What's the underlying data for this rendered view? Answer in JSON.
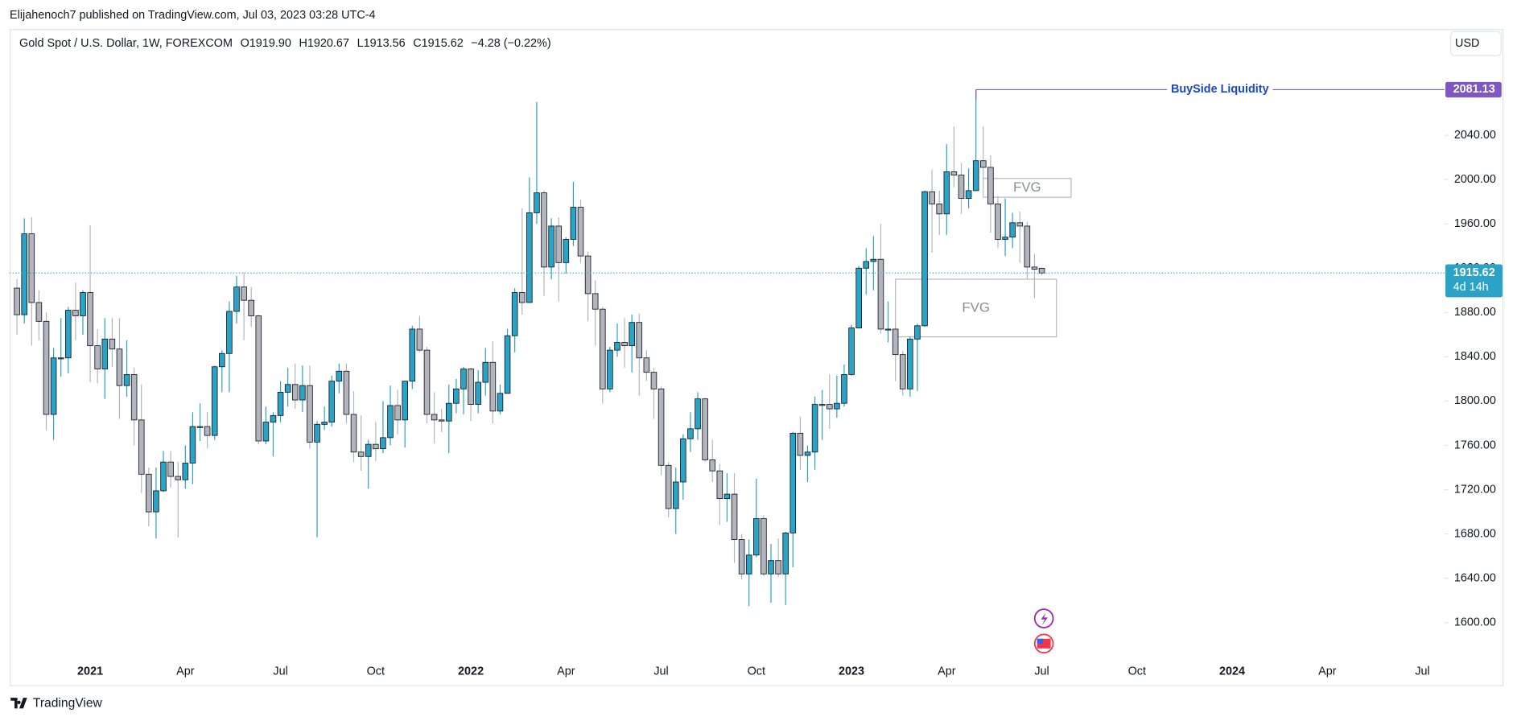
{
  "header": {
    "published": "Elijahenoch7 published on TradingView.com, Jul 03, 2023 03:28 UTC-4",
    "footer": "TradingView",
    "currency_button": "USD"
  },
  "legend": {
    "symbol": "Gold Spot / U.S. Dollar, 1W, FOREXCOM",
    "open": "O1919.90",
    "high": "H1920.67",
    "low": "L1913.56",
    "close": "C1915.62",
    "change": "−4.28 (−0.22%)"
  },
  "chart_data": {
    "type": "candlestick",
    "up_color": "#2ba3c6",
    "down_color": "#b2b5be",
    "outline_color": "#131722",
    "open": [
      1902,
      1878,
      1951,
      1889,
      1872,
      1788,
      1839,
      1839,
      1882,
      1877,
      1898,
      1850,
      1829,
      1856,
      1847,
      1814,
      1824,
      1783,
      1734,
      1700,
      1719,
      1745,
      1732,
      1729,
      1744,
      1777,
      1777,
      1769,
      1831,
      1843,
      1881,
      1903,
      1891,
      1877,
      1764,
      1781,
      1787,
      1808,
      1815,
      1801,
      1814,
      1763,
      1779,
      1781,
      1818,
      1827,
      1788,
      1754,
      1750,
      1761,
      1757,
      1767,
      1796,
      1783,
      1818,
      1865,
      1846,
      1788,
      1783,
      1782,
      1798,
      1811,
      1829,
      1797,
      1817,
      1835,
      1791,
      1807,
      1859,
      1898,
      1889,
      1970,
      1988,
      1921,
      1958,
      1925,
      1946,
      1975,
      1931,
      1897,
      1883,
      1811,
      1846,
      1853,
      1850,
      1871,
      1839,
      1826,
      1811,
      1742,
      1703,
      1727,
      1766,
      1775,
      1802,
      1747,
      1737,
      1712,
      1716,
      1675,
      1644,
      1661,
      1694,
      1644,
      1656,
      1644,
      1681,
      1771,
      1751,
      1754,
      1797,
      1797,
      1793,
      1798,
      1824,
      1866,
      1920,
      1926,
      1928,
      1865,
      1865,
      1842,
      1811,
      1856,
      1868,
      1989,
      1978,
      1969,
      2007,
      2004,
      1983,
      1990,
      2017,
      2011,
      1978,
      1946,
      1948,
      1961,
      1958,
      1921,
      1919.9
    ],
    "high": [
      1910,
      1965,
      1966,
      1900,
      1880,
      1848,
      1875,
      1885,
      1907,
      1900,
      1959,
      1865,
      1875,
      1875,
      1875,
      1855,
      1830,
      1815,
      1740,
      1740,
      1755,
      1755,
      1745,
      1760,
      1790,
      1798,
      1790,
      1832,
      1846,
      1890,
      1913,
      1916,
      1903,
      1878,
      1795,
      1790,
      1818,
      1830,
      1834,
      1832,
      1832,
      1782,
      1795,
      1823,
      1834,
      1834,
      1809,
      1787,
      1765,
      1781,
      1800,
      1814,
      1810,
      1818,
      1868,
      1877,
      1849,
      1808,
      1793,
      1815,
      1820,
      1831,
      1830,
      1828,
      1848,
      1854,
      1815,
      1865,
      1902,
      1974,
      2002,
      2070,
      1990,
      1965,
      1966,
      1948,
      1998,
      1982,
      1935,
      1909,
      1885,
      1849,
      1870,
      1875,
      1878,
      1879,
      1846,
      1830,
      1813,
      1745,
      1740,
      1770,
      1790,
      1808,
      1803,
      1765,
      1743,
      1735,
      1735,
      1680,
      1675,
      1730,
      1697,
      1671,
      1676,
      1682,
      1772,
      1786,
      1760,
      1804,
      1810,
      1824,
      1823,
      1833,
      1869,
      1922,
      1938,
      1949,
      1960,
      1890,
      1870,
      1845,
      1858,
      1870,
      1990,
      2009,
      1990,
      2032,
      2048,
      2015,
      2010,
      2081,
      2048,
      2022,
      1985,
      1983,
      1970,
      1971,
      1962,
      1933,
      1920.67
    ],
    "low": [
      1860,
      1870,
      1850,
      1855,
      1774,
      1765,
      1822,
      1825,
      1855,
      1860,
      1817,
      1816,
      1802,
      1831,
      1784,
      1804,
      1760,
      1717,
      1687,
      1676,
      1718,
      1722,
      1677,
      1721,
      1725,
      1764,
      1757,
      1765,
      1808,
      1808,
      1870,
      1855,
      1867,
      1761,
      1761,
      1750,
      1781,
      1795,
      1793,
      1790,
      1757,
      1677,
      1774,
      1777,
      1807,
      1780,
      1745,
      1737,
      1721,
      1746,
      1753,
      1760,
      1770,
      1758,
      1811,
      1844,
      1780,
      1762,
      1772,
      1753,
      1789,
      1788,
      1782,
      1789,
      1805,
      1780,
      1788,
      1808,
      1844,
      1878,
      1889,
      1960,
      1895,
      1910,
      1890,
      1915,
      1940,
      1925,
      1872,
      1850,
      1798,
      1808,
      1840,
      1830,
      1826,
      1805,
      1818,
      1784,
      1733,
      1695,
      1680,
      1711,
      1754,
      1765,
      1745,
      1727,
      1688,
      1691,
      1654,
      1639,
      1615,
      1659,
      1642,
      1618,
      1641,
      1616,
      1650,
      1738,
      1727,
      1738,
      1765,
      1775,
      1785,
      1795,
      1823,
      1867,
      1896,
      1900,
      1861,
      1853,
      1818,
      1805,
      1804,
      1809,
      1867,
      1934,
      1950,
      1950,
      1993,
      1969,
      1974,
      1990,
      2000,
      1952,
      1938,
      1931,
      1938,
      1925,
      1910,
      1893,
      1913.56
    ],
    "close": [
      1878,
      1951,
      1889,
      1872,
      1788,
      1839,
      1839,
      1882,
      1877,
      1898,
      1850,
      1829,
      1856,
      1847,
      1814,
      1824,
      1783,
      1734,
      1700,
      1719,
      1745,
      1732,
      1729,
      1744,
      1777,
      1777,
      1769,
      1831,
      1843,
      1881,
      1903,
      1891,
      1877,
      1764,
      1781,
      1787,
      1808,
      1815,
      1801,
      1814,
      1763,
      1779,
      1781,
      1818,
      1827,
      1788,
      1754,
      1750,
      1761,
      1757,
      1767,
      1796,
      1783,
      1818,
      1865,
      1846,
      1788,
      1783,
      1782,
      1798,
      1811,
      1829,
      1797,
      1817,
      1835,
      1791,
      1807,
      1859,
      1898,
      1889,
      1970,
      1988,
      1921,
      1958,
      1925,
      1946,
      1975,
      1931,
      1897,
      1883,
      1811,
      1846,
      1853,
      1850,
      1871,
      1839,
      1826,
      1811,
      1742,
      1703,
      1727,
      1766,
      1775,
      1802,
      1747,
      1737,
      1712,
      1716,
      1675,
      1644,
      1661,
      1694,
      1644,
      1656,
      1644,
      1681,
      1771,
      1751,
      1754,
      1797,
      1797,
      1793,
      1798,
      1824,
      1866,
      1920,
      1926,
      1928,
      1865,
      1865,
      1842,
      1811,
      1856,
      1868,
      1989,
      1978,
      1969,
      2007,
      2004,
      1983,
      1990,
      2017,
      2011,
      1978,
      1946,
      1948,
      1961,
      1958,
      1921,
      1919,
      1915.62
    ],
    "xlim": [
      -1,
      195
    ],
    "xticks": [
      {
        "value": 10,
        "label": "2021"
      },
      {
        "value": 23,
        "label": "Apr"
      },
      {
        "value": 36,
        "label": "Jul"
      },
      {
        "value": 49,
        "label": "Oct"
      },
      {
        "value": 62,
        "label": "2022"
      },
      {
        "value": 75,
        "label": "Apr"
      },
      {
        "value": 88,
        "label": "Jul"
      },
      {
        "value": 101,
        "label": "Oct"
      },
      {
        "value": 114,
        "label": "2023"
      },
      {
        "value": 127,
        "label": "Apr"
      },
      {
        "value": 140,
        "label": "Jul"
      },
      {
        "value": 153,
        "label": "Oct"
      },
      {
        "value": 166,
        "label": "2024"
      },
      {
        "value": 179,
        "label": "Apr"
      },
      {
        "value": 192,
        "label": "Jul"
      }
    ],
    "ylim": [
      1568,
      2135
    ],
    "yticks": [
      {
        "value": 1600,
        "label": "1600.00"
      },
      {
        "value": 1640,
        "label": "1640.00"
      },
      {
        "value": 1680,
        "label": "1680.00"
      },
      {
        "value": 1720,
        "label": "1720.00"
      },
      {
        "value": 1760,
        "label": "1760.00"
      },
      {
        "value": 1800,
        "label": "1800.00"
      },
      {
        "value": 1840,
        "label": "1840.00"
      },
      {
        "value": 1880,
        "label": "1880.00"
      },
      {
        "value": 1920,
        "label": "1920.00"
      },
      {
        "value": 1960,
        "label": "1960.00"
      },
      {
        "value": 2000,
        "label": "2000.00"
      },
      {
        "value": 2040,
        "label": "2040.00"
      }
    ],
    "countdown": "4d 14h",
    "liquidity": {
      "label": "BuySide Liquidity",
      "price": 2081.13,
      "start": 131,
      "color": "#7e57c2",
      "text_color": "#1848cc"
    },
    "fvg": [
      {
        "label": "FVG",
        "top": 2001,
        "bottom": 1984,
        "start": 132,
        "end": 144
      },
      {
        "label": "FVG",
        "top": 1910,
        "bottom": 1858,
        "start": 120,
        "end": 142
      }
    ]
  }
}
